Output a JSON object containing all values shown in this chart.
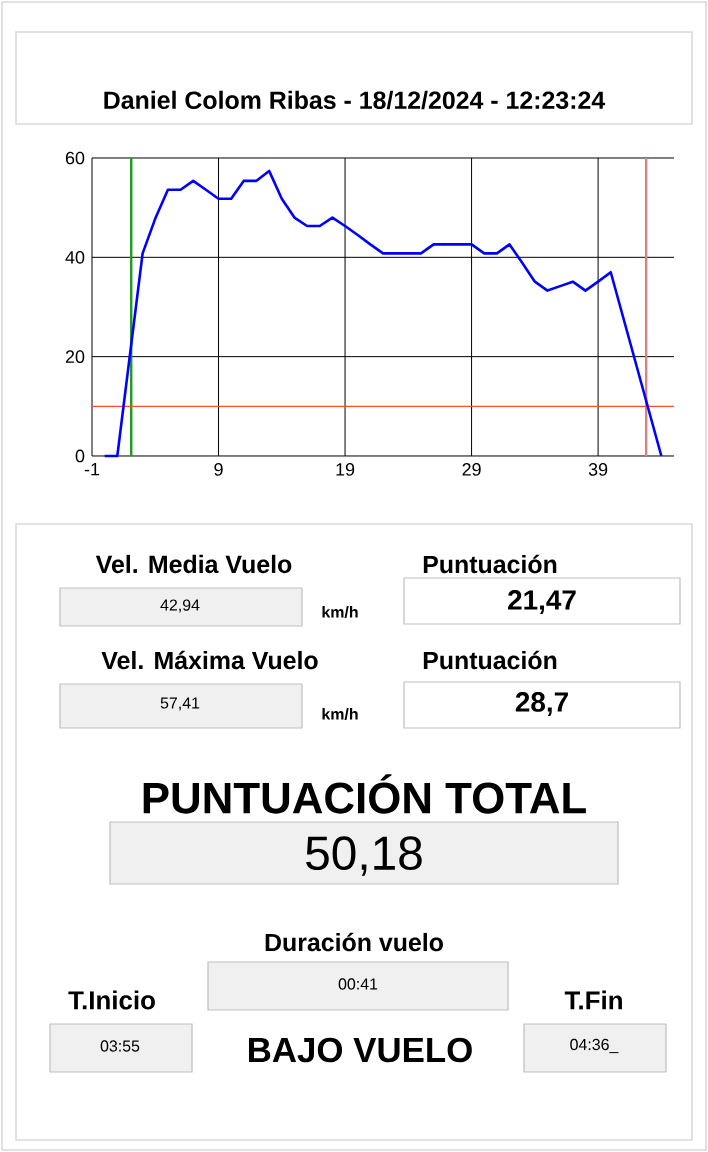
{
  "chart_data": [
    {
      "type": "line",
      "subtitle": "Daniel Colom Ribas   -   18/12/2024   -   12:23:24",
      "x": [
        0,
        1,
        3,
        4,
        5,
        6,
        7,
        8,
        9,
        10,
        11,
        12,
        13,
        14,
        15,
        16,
        17,
        18,
        19,
        20,
        21,
        22,
        23,
        24,
        25,
        26,
        27,
        28,
        29,
        30,
        31,
        32,
        33,
        34,
        35,
        36,
        37,
        38,
        39,
        40,
        44
      ],
      "values": [
        0,
        0,
        40.8,
        47.8,
        53.6,
        53.6,
        55.4,
        53.6,
        51.8,
        51.8,
        55.4,
        55.4,
        57.4,
        51.8,
        48,
        46.3,
        46.3,
        48,
        46.3,
        44.5,
        42.6,
        40.8,
        40.8,
        40.8,
        40.8,
        42.6,
        42.6,
        42.6,
        42.6,
        40.8,
        40.8,
        42.6,
        38.9,
        35.1,
        33.3,
        34.2,
        35.1,
        33.3,
        35.1,
        37,
        0
      ],
      "color": "#0000ff",
      "xlim": [
        -1,
        45
      ],
      "ylim": [
        0,
        60
      ],
      "xticks": [
        -1,
        9,
        19,
        29,
        39
      ],
      "yticks": [
        0,
        20,
        40,
        60
      ],
      "grid": true,
      "ref_lines": [
        {
          "axis": "x",
          "value": 2.1,
          "color": "#1f9a1f"
        },
        {
          "axis": "x",
          "value": 42.8,
          "color": "#d98080"
        },
        {
          "axis": "y",
          "value": 10,
          "color": "#ff5020"
        }
      ]
    },
    {
      "type": "other",
      "annotations": [
        "Vel. Media Vuelo",
        "Puntuación",
        "42,94",
        "km/h",
        "21,47",
        "Vel. Máxima Vuelo",
        "Puntuación",
        "57,41",
        "km/h",
        "28,7",
        "PUNTUACIÓN TOTAL",
        "50,18",
        "Duración vuelo",
        "00:41",
        "T.Inicio",
        "03:55",
        "BAJO VUELO",
        "T.Fin",
        "04:36_"
      ]
    }
  ]
}
